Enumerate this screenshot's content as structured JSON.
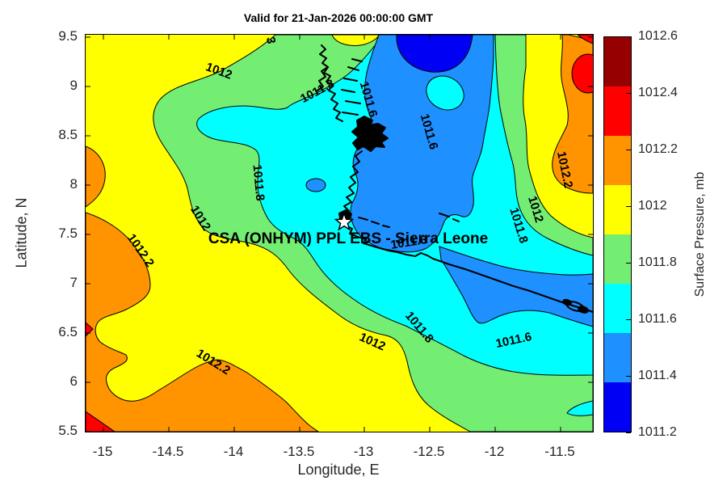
{
  "title": "Valid for 21-Jan-2026 00:00:00 GMT",
  "axes": {
    "xlabel": "Longitude, E",
    "ylabel": "Latitude, N",
    "x_tick_labels": [
      "-15",
      "-14.5",
      "-14",
      "-13.5",
      "-13",
      "-12.5",
      "-12",
      "-11.5"
    ],
    "y_tick_labels": [
      "9.5",
      "9",
      "8.5",
      "8",
      "7.5",
      "7",
      "6.5",
      "6",
      "5.5"
    ]
  },
  "colorbar": {
    "label": "Surface Pressure, mb",
    "tick_labels_top_to_bottom": [
      "1012.6",
      "1012.4",
      "1012.2",
      "1012",
      "1011.8",
      "1011.6",
      "1011.4",
      "1011.2"
    ],
    "band_order_top_to_bottom": [
      "maroon",
      "red",
      "orange",
      "yellow",
      "green",
      "cyan",
      "blue",
      "darkblue"
    ]
  },
  "palette": {
    "maroon": "#970000",
    "red": "#ff0000",
    "orange": "#ff9400",
    "yellow": "#ffff00",
    "green": "#73ee73",
    "cyan": "#00ffff",
    "blue": "#1e90ff",
    "darkblue": "#0000f5"
  },
  "annotation": {
    "text": "CSA (ONHYM) PPL EBS  - Sierra Leone",
    "marker": "white-star",
    "marker_lon": -13.2,
    "marker_lat": 7.6
  },
  "chart_data": {
    "type": "heatmap",
    "subtype": "filled-contour-map",
    "title": "Valid for 21-Jan-2026 00:00:00 GMT",
    "xlabel": "Longitude, E",
    "ylabel": "Latitude, N",
    "xlim": [
      -15.15,
      -11.25
    ],
    "ylim": [
      5.5,
      9.5
    ],
    "x_ticks": [
      -15,
      -14.5,
      -14,
      -13.5,
      -13,
      -12.5,
      -12,
      -11.5
    ],
    "y_ticks": [
      9.5,
      9,
      8.5,
      8,
      7.5,
      7,
      6.5,
      6,
      5.5
    ],
    "colorbar_label": "Surface Pressure, mb",
    "colorbar_range_mb": [
      1011.2,
      1012.6
    ],
    "colorbar_ticks_mb": [
      1011.2,
      1011.4,
      1011.6,
      1011.8,
      1012,
      1012.2,
      1012.4,
      1012.6
    ],
    "contour_levels_mb": [
      1011.4,
      1011.6,
      1011.8,
      1012,
      1012.2,
      1012.4
    ],
    "features": [
      {
        "desc": "pressure minimum < 1011.4 mb (dark blue pocket)",
        "lon": -12.5,
        "lat": 9.45
      },
      {
        "desc": "low trough 1011.4-1011.6 mb running N-S through center",
        "lon": -12.8,
        "lat": 8.6
      },
      {
        "desc": "low lobe 1011.4-1011.6 mb along SE coast",
        "lon": -11.9,
        "lat": 6.7
      },
      {
        "desc": "high > 1012.4 mb (red blob) at NE corner",
        "lon": -11.35,
        "lat": 9.1
      },
      {
        "desc": "high 1012.2-1012.4 mb over SW quadrant",
        "lon": -14.7,
        "lat": 6.2
      },
      {
        "desc": "small > 1012.4 mb spots at W edge and SW corner",
        "lon": -15.1,
        "lat": 5.6
      }
    ],
    "contour_labels": [
      {
        "text": "1012",
        "x": 165,
        "y": 45,
        "r": 20
      },
      {
        "text": "3",
        "x": 229,
        "y": 7,
        "r": 80
      },
      {
        "text": "1011.8",
        "x": 287,
        "y": 70,
        "r": -28
      },
      {
        "text": "1011.6",
        "x": 350,
        "y": 80,
        "r": 74
      },
      {
        "text": "1011.6",
        "x": 425,
        "y": 120,
        "r": 74
      },
      {
        "text": "1011.8",
        "x": 214,
        "y": 183,
        "r": 85
      },
      {
        "text": "1012",
        "x": 142,
        "y": 227,
        "r": 58
      },
      {
        "text": "1012.2",
        "x": 68,
        "y": 267,
        "r": 55
      },
      {
        "text": "1012.2",
        "x": 158,
        "y": 405,
        "r": 32
      },
      {
        "text": "1012",
        "x": 355,
        "y": 380,
        "r": 24
      },
      {
        "text": "1011.8",
        "x": 413,
        "y": 362,
        "r": 50
      },
      {
        "text": "1011.6",
        "x": 530,
        "y": 378,
        "r": -12
      },
      {
        "text": "1011.6",
        "x": 400,
        "y": 257,
        "r": -9
      },
      {
        "text": "1012.2",
        "x": 593,
        "y": 167,
        "r": 78
      },
      {
        "text": "1012",
        "x": 557,
        "y": 216,
        "r": 73
      },
      {
        "text": "1011.8",
        "x": 536,
        "y": 236,
        "r": 73
      }
    ],
    "star_marker": {
      "label": "CSA (ONHYM) PPL EBS  - Sierra Leone",
      "lon": -13.2,
      "lat": 7.6
    }
  }
}
